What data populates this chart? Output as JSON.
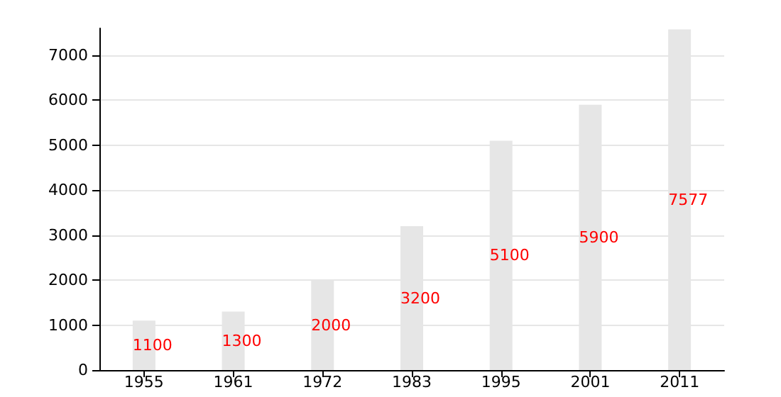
{
  "chart_data": {
    "type": "bar",
    "categories": [
      "1955",
      "1961",
      "1972",
      "1983",
      "1995",
      "2001",
      "2011"
    ],
    "values": [
      1100,
      1300,
      2000,
      3200,
      5100,
      5900,
      7577
    ],
    "color": "#e6e6e6",
    "data_labels": true,
    "ylim": [
      0,
      7600
    ],
    "yticks": [
      0,
      1000,
      2000,
      3000,
      4000,
      5000,
      6000,
      7000
    ],
    "grid": "y"
  }
}
